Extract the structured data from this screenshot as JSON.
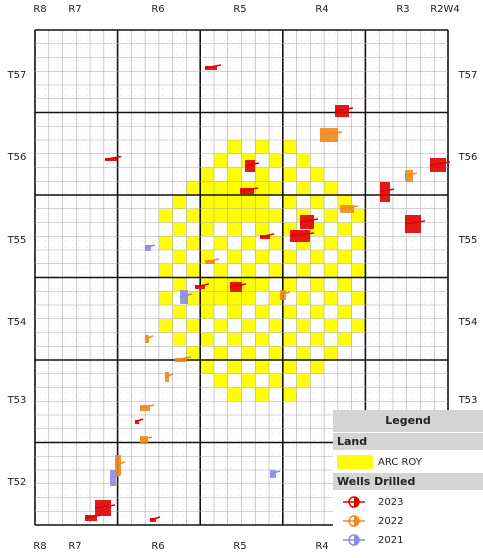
{
  "range_labels_top": [
    "R8",
    "R7",
    "R6",
    "R5",
    "R4",
    "R3",
    "R2W4"
  ],
  "range_labels_bottom": [
    "R8",
    "R7",
    "R6",
    "R5",
    "R4"
  ],
  "township_labels_left": [
    "T57",
    "T56",
    "T55",
    "T54",
    "T53",
    "T52"
  ],
  "township_labels_right": [
    "T57",
    "T56",
    "T55",
    "T54",
    "T53"
  ],
  "legend": {
    "title": "Legend",
    "land_heading": "Land",
    "land_items": [
      {
        "label": "ARC ROY",
        "color": "#ffff00"
      }
    ],
    "wells_heading": "Wells Drilled",
    "wells_items": [
      {
        "label": "2023",
        "color": "#e00000"
      },
      {
        "label": "2022",
        "color": "#f08a1c"
      },
      {
        "label": "2021",
        "color": "#8c8ce8"
      }
    ]
  }
}
